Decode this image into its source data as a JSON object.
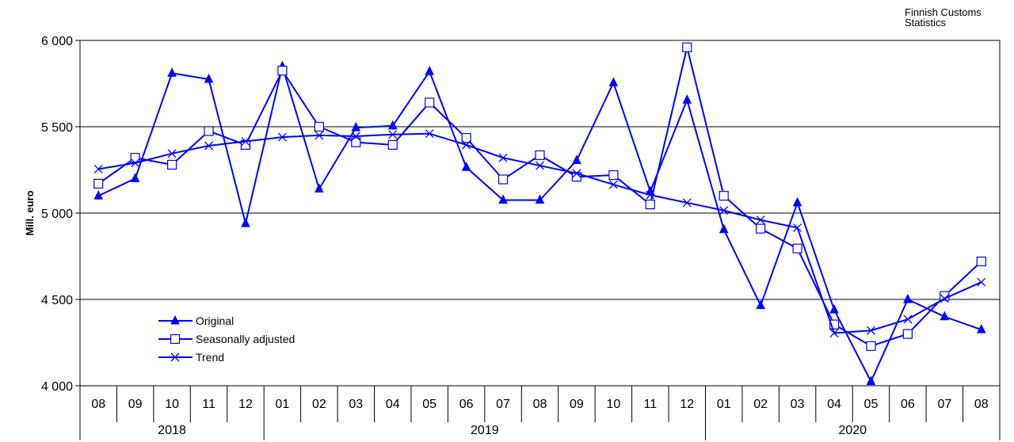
{
  "source_lines": [
    "Finnish Customs",
    "Statistics"
  ],
  "chart_data": {
    "type": "line",
    "ylabel": "Mill. euro",
    "ylim": [
      4000,
      6000
    ],
    "y_ticks": [
      4000,
      4500,
      5000,
      5500,
      6000
    ],
    "y_tick_labels": [
      "4 000",
      "4 500",
      "5 000",
      "5 500",
      "6 000"
    ],
    "grid": true,
    "legend_position": "bottom-left",
    "categories": [
      "08",
      "09",
      "10",
      "11",
      "12",
      "01",
      "02",
      "03",
      "04",
      "05",
      "06",
      "07",
      "08",
      "09",
      "10",
      "11",
      "12",
      "01",
      "02",
      "03",
      "04",
      "05",
      "06",
      "07",
      "08"
    ],
    "year_groups": [
      {
        "label": "2018",
        "start": 0,
        "end": 4
      },
      {
        "label": "2019",
        "start": 5,
        "end": 16
      },
      {
        "label": "2020",
        "start": 17,
        "end": 24
      }
    ],
    "series": [
      {
        "name": "Original",
        "marker": "triangle",
        "color": "#0000FF",
        "values": [
          5100,
          5200,
          5810,
          5775,
          4940,
          5850,
          5140,
          5495,
          5505,
          5820,
          5265,
          5075,
          5075,
          5305,
          5755,
          5125,
          5655,
          4905,
          4465,
          5060,
          4440,
          4025,
          4500,
          4400,
          4325
        ]
      },
      {
        "name": "Seasonally adjusted",
        "marker": "square",
        "color": "#0000FF",
        "values": [
          5170,
          5320,
          5280,
          5475,
          5395,
          5825,
          5500,
          5410,
          5395,
          5640,
          5435,
          5195,
          5335,
          5210,
          5220,
          5050,
          5960,
          5100,
          4910,
          4795,
          4355,
          4230,
          4300,
          4520,
          4720
        ]
      },
      {
        "name": "Trend",
        "marker": "x",
        "color": "#0000FF",
        "values": [
          5255,
          5290,
          5345,
          5390,
          5415,
          5440,
          5450,
          5445,
          5455,
          5460,
          5395,
          5320,
          5275,
          5230,
          5165,
          5105,
          5060,
          5015,
          4960,
          4915,
          4305,
          4320,
          4385,
          4505,
          4600
        ]
      }
    ]
  }
}
